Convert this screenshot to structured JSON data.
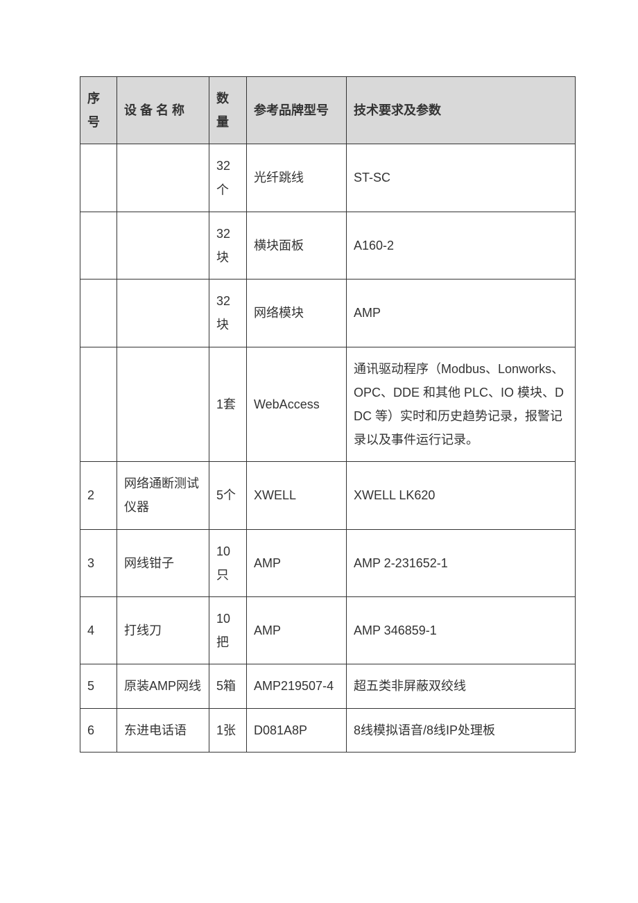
{
  "table": {
    "headers": {
      "c1": "序号",
      "c2": "设 备 名 称",
      "c3": "数量",
      "c4": "参考品牌型号",
      "c5": "技术要求及参数"
    },
    "rows": [
      {
        "c1": "",
        "c2": "",
        "c3": "32个",
        "c4": "光纤跳线",
        "c5": "ST-SC"
      },
      {
        "c1": "",
        "c2": "",
        "c3": "32块",
        "c4": "横块面板",
        "c5": "A160-2"
      },
      {
        "c1": "",
        "c2": "",
        "c3": "32块",
        "c4": "网络模块",
        "c5": "AMP"
      },
      {
        "c1": "",
        "c2": "",
        "c3": "1套",
        "c4": "WebAccess",
        "c5": "通讯驱动程序（Modbus、Lonworks、OPC、DDE 和其他 PLC、IO 模块、DDC 等）实时和历史趋势记录，报警记录以及事件运行记录。"
      },
      {
        "c1": "2",
        "c2": "网络通断测试仪器",
        "c3": "5个",
        "c4": "XWELL",
        "c5": "XWELL LK620"
      },
      {
        "c1": "3",
        "c2": "网线钳子",
        "c3": "10只",
        "c4": "AMP",
        "c5": "AMP 2-231652-1"
      },
      {
        "c1": "4",
        "c2": "打线刀",
        "c3": "10把",
        "c4": "AMP",
        "c5": "AMP 346859-1"
      },
      {
        "c1": "5",
        "c2": "原装AMP网线",
        "c3": "5箱",
        "c4": "AMP219507-4",
        "c5": "超五类非屏蔽双绞线"
      },
      {
        "c1": "6",
        "c2": "东进电话语",
        "c3": "1张",
        "c4": "D081A8P",
        "c5": "8线模拟语音/8线IP处理板"
      }
    ],
    "columns": [
      "c1",
      "c2",
      "c3",
      "c4",
      "c5"
    ],
    "header_bg": "#d9d9d9",
    "border_color": "#333333",
    "text_color": "#333333",
    "font_size_pt": 14
  }
}
